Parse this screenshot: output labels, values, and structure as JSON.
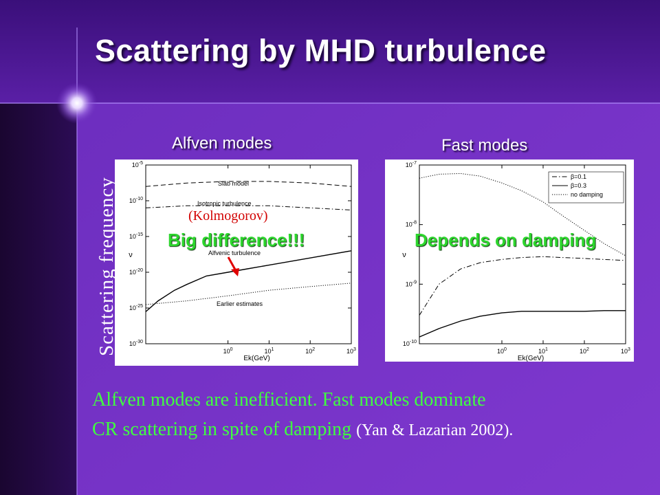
{
  "slide": {
    "title": "Scattering by MHD turbulence",
    "y_axis_label": "Scattering frequency",
    "note_left": "Big difference!!!",
    "note_left_sub": "(Kolmogorov)",
    "note_right": "Depends on damping",
    "conclusion_line1": "Alfven modes are inefficient.  Fast modes dominate",
    "conclusion_line2": "CR scattering in spite of damping ",
    "citation": "(Yan & Lazarian 2002)."
  },
  "chart_data": [
    {
      "type": "line",
      "title": "Alfven modes",
      "xlabel": "E_k(GeV)",
      "ylabel": "ν",
      "xscale": "log",
      "yscale": "log",
      "xlim": [
        0.01,
        1000
      ],
      "ylim": [
        1e-30,
        1e-05
      ],
      "xticks": [
        "10^0",
        "10^1",
        "10^2",
        "10^3"
      ],
      "yticks": [
        "10^-5",
        "10^-10",
        "10^-15",
        "10^-20",
        "10^-25",
        "10^-30"
      ],
      "annotations": [
        "Slab model",
        "Isotropic turbulence",
        "Alfvenic turbulence",
        "Earlier estimates"
      ],
      "series": [
        {
          "name": "Slab model",
          "style": "dashed",
          "x": [
            0.01,
            0.1,
            1,
            10,
            100,
            1000
          ],
          "y": [
            1e-08,
            3e-08,
            5e-08,
            5e-08,
            3e-08,
            1e-08
          ]
        },
        {
          "name": "Isotropic turbulence",
          "style": "dash-dot",
          "x": [
            0.01,
            0.1,
            1,
            10,
            100,
            1000
          ],
          "y": [
            1e-11,
            2e-11,
            2e-11,
            2e-11,
            1e-11,
            5e-12
          ]
        },
        {
          "name": "Alfvenic turbulence",
          "style": "solid",
          "x": [
            0.01,
            0.02,
            0.05,
            0.1,
            0.3,
            1,
            3,
            10,
            100,
            1000
          ],
          "y": [
            3e-26,
            1e-24,
            3e-23,
            2e-22,
            3e-21,
            1e-20,
            3e-20,
            1e-19,
            1e-18,
            1e-17
          ]
        },
        {
          "name": "Earlier estimates",
          "style": "dotted",
          "x": [
            0.01,
            0.1,
            1,
            10,
            100,
            1000
          ],
          "y": [
            3e-25,
            1e-24,
            5e-24,
            3e-23,
            1e-22,
            3e-22
          ]
        }
      ]
    },
    {
      "type": "line",
      "title": "Fast modes",
      "xlabel": "E_k(GeV)",
      "ylabel": "ν",
      "xscale": "log",
      "yscale": "log",
      "xlim": [
        0.01,
        1000
      ],
      "ylim": [
        1e-10,
        1e-07
      ],
      "xticks": [
        "10^0",
        "10^1",
        "10^2",
        "10^3"
      ],
      "yticks": [
        "10^-7",
        "10^-8",
        "10^-9",
        "10^-10"
      ],
      "legend": "top-right",
      "series": [
        {
          "name": "β=0.1",
          "style": "dash-dot",
          "x": [
            0.01,
            0.03,
            0.1,
            0.3,
            1,
            3,
            10,
            30,
            100,
            300,
            1000
          ],
          "y": [
            3e-10,
            1e-09,
            1.8e-09,
            2.3e-09,
            2.6e-09,
            2.8e-09,
            2.9e-09,
            2.8e-09,
            2.7e-09,
            2.6e-09,
            2.5e-09
          ]
        },
        {
          "name": "β=0.3",
          "style": "solid",
          "x": [
            0.01,
            0.03,
            0.1,
            0.3,
            1,
            3,
            10,
            30,
            100,
            300,
            1000
          ],
          "y": [
            1.3e-10,
            1.8e-10,
            2.4e-10,
            2.9e-10,
            3.3e-10,
            3.5e-10,
            3.5e-10,
            3.5e-10,
            3.5e-10,
            3.6e-10,
            3.6e-10
          ]
        },
        {
          "name": "no damping",
          "style": "dotted",
          "x": [
            0.01,
            0.03,
            0.1,
            0.3,
            1,
            3,
            10,
            30,
            100,
            300,
            1000
          ],
          "y": [
            6e-08,
            7e-08,
            7.2e-08,
            6.5e-08,
            5e-08,
            3.7e-08,
            2.4e-08,
            1.4e-08,
            8e-09,
            4.8e-09,
            3e-09
          ]
        }
      ]
    }
  ]
}
